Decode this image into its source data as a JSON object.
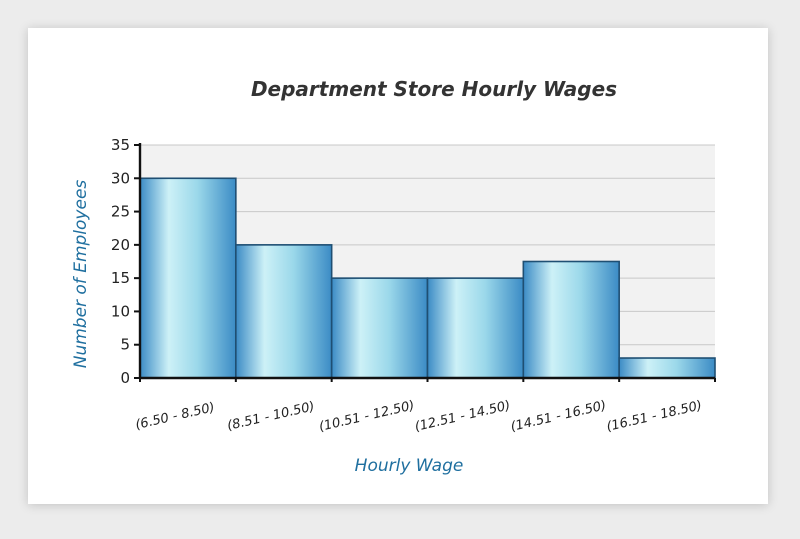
{
  "chart_data": {
    "type": "bar",
    "title": "Department Store Hourly Wages",
    "xlabel": "Hourly Wage",
    "ylabel": "Number of Employees",
    "categories": [
      "(6.50 - 8.50)",
      "(8.51 - 10.50)",
      "(10.51 - 12.50)",
      "(12.51 - 14.50)",
      "(14.51 - 16.50)",
      "(16.51 - 18.50)"
    ],
    "values": [
      30,
      20,
      15,
      15,
      17.5,
      3
    ],
    "ylim": [
      0,
      35
    ],
    "yticks": [
      0,
      5,
      10,
      15,
      20,
      25,
      30,
      35
    ],
    "grid": true,
    "legend": "none",
    "colors": {
      "bar_edge": "#1f4f73",
      "bar_light": "#cdf1f7",
      "bar_mid": "#9bd8ea",
      "bar_dark": "#3b8bc5",
      "plot_bg": "#f2f2f2",
      "grid": "#c8c8c8",
      "axis_title": "#1f6f9f",
      "axis": "#111111"
    }
  }
}
